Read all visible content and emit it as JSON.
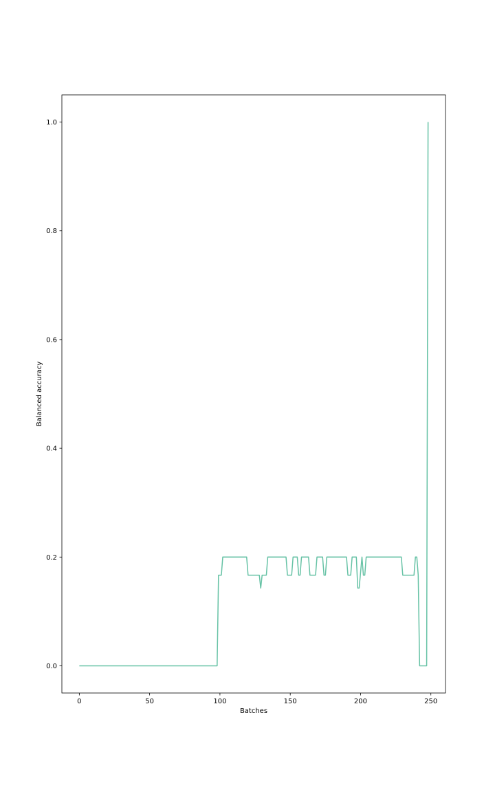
{
  "chart_data": {
    "type": "line",
    "title": "",
    "xlabel": "Batches",
    "ylabel": "Balanced accuracy",
    "xlim": [
      -12.4,
      260.4
    ],
    "ylim": [
      -0.05,
      1.05
    ],
    "xticks": [
      0,
      50,
      100,
      150,
      200,
      250
    ],
    "xtick_labels": [
      "0",
      "50",
      "100",
      "150",
      "200",
      "250"
    ],
    "yticks": [
      0.0,
      0.2,
      0.4,
      0.6,
      0.8,
      1.0
    ],
    "ytick_labels": [
      "0.0",
      "0.2",
      "0.4",
      "0.6",
      "0.8",
      "1.0"
    ],
    "grid": false,
    "legend": "none",
    "series": [
      {
        "color": "#66c2a5",
        "points": [
          [
            0,
            0.0
          ],
          [
            98,
            0.0
          ],
          [
            99,
            0.1667
          ],
          [
            101,
            0.1667
          ],
          [
            102,
            0.2
          ],
          [
            119,
            0.2
          ],
          [
            120,
            0.1667
          ],
          [
            128,
            0.1667
          ],
          [
            129,
            0.1429
          ],
          [
            130,
            0.1667
          ],
          [
            133,
            0.1667
          ],
          [
            134,
            0.2
          ],
          [
            147,
            0.2
          ],
          [
            148,
            0.1667
          ],
          [
            151,
            0.1667
          ],
          [
            152,
            0.2
          ],
          [
            155,
            0.2
          ],
          [
            156,
            0.1667
          ],
          [
            157,
            0.1667
          ],
          [
            158,
            0.2
          ],
          [
            163,
            0.2
          ],
          [
            164,
            0.1667
          ],
          [
            168,
            0.1667
          ],
          [
            169,
            0.2
          ],
          [
            173,
            0.2
          ],
          [
            174,
            0.1667
          ],
          [
            175,
            0.1667
          ],
          [
            176,
            0.2
          ],
          [
            190,
            0.2
          ],
          [
            191,
            0.1667
          ],
          [
            193,
            0.1667
          ],
          [
            194,
            0.2
          ],
          [
            197,
            0.2
          ],
          [
            198,
            0.1429
          ],
          [
            199,
            0.1429
          ],
          [
            201,
            0.2
          ],
          [
            202,
            0.1667
          ],
          [
            203,
            0.1667
          ],
          [
            204,
            0.2
          ],
          [
            229,
            0.2
          ],
          [
            230,
            0.1667
          ],
          [
            238,
            0.1667
          ],
          [
            239,
            0.2
          ],
          [
            240,
            0.2
          ],
          [
            241,
            0.1667
          ],
          [
            242,
            0.0
          ],
          [
            247,
            0.0
          ],
          [
            248,
            1.0
          ]
        ]
      }
    ]
  }
}
